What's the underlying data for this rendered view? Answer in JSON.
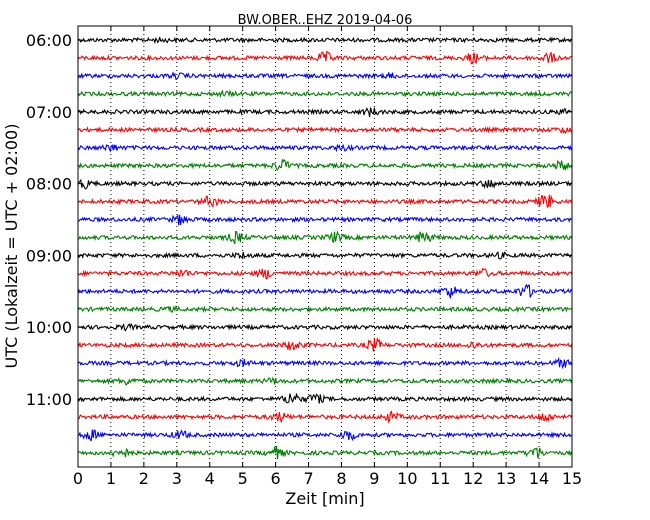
{
  "chart_data": {
    "type": "line",
    "title": "BW.OBER..EHZ 2019-04-06",
    "xlabel": "Zeit  [min]",
    "ylabel": "UTC (Lokalzeit = UTC + 02:00)",
    "xlim": [
      0,
      15
    ],
    "x_ticks": [
      "0",
      "1",
      "2",
      "3",
      "4",
      "5",
      "6",
      "7",
      "8",
      "9",
      "10",
      "11",
      "12",
      "13",
      "14",
      "15"
    ],
    "y_ticks": [
      "06:00",
      "07:00",
      "08:00",
      "09:00",
      "10:00",
      "11:00"
    ],
    "grid": "vertical dotted",
    "trace_colors": [
      "#000000",
      "#ff0000",
      "#0000ff",
      "#008000"
    ],
    "trace_starts": [
      "06:00",
      "06:15",
      "06:30",
      "06:45",
      "07:00",
      "07:15",
      "07:30",
      "07:45",
      "08:00",
      "08:15",
      "08:30",
      "08:45",
      "09:00",
      "09:15",
      "09:30",
      "09:45",
      "10:00",
      "10:15",
      "10:30",
      "10:45",
      "11:00",
      "11:15",
      "11:30",
      "11:45"
    ],
    "trace_events": [
      [
        [
          2.5,
          0.4
        ]
      ],
      [
        [
          7.5,
          1.6
        ],
        [
          12.0,
          1.5
        ],
        [
          14.3,
          1.4
        ]
      ],
      [
        [
          3.0,
          0.6
        ],
        [
          9.5,
          0.6
        ]
      ],
      [
        [
          4.5,
          0.5
        ]
      ],
      [
        [
          8.9,
          1.2
        ],
        [
          14.8,
          0.6
        ]
      ],
      [
        [
          14.8,
          0.7
        ]
      ],
      [
        [
          1.0,
          0.9
        ],
        [
          8.0,
          0.6
        ]
      ],
      [
        [
          6.2,
          1.7
        ],
        [
          14.7,
          1.3
        ]
      ],
      [
        [
          0.2,
          1.2
        ],
        [
          12.5,
          1.1
        ]
      ],
      [
        [
          4.0,
          1.5
        ],
        [
          14.2,
          2.2
        ]
      ],
      [
        [
          3.1,
          1.4
        ]
      ],
      [
        [
          4.8,
          1.6
        ],
        [
          7.8,
          1.4
        ],
        [
          10.5,
          1.7
        ]
      ],
      [
        [
          5.0,
          0.7
        ],
        [
          12.8,
          0.6
        ]
      ],
      [
        [
          3.2,
          0.9
        ],
        [
          5.7,
          1.4
        ],
        [
          12.3,
          1.1
        ]
      ],
      [
        [
          11.3,
          1.8
        ],
        [
          13.6,
          2.0
        ]
      ],
      [
        [
          2.8,
          0.4
        ]
      ],
      [
        [
          1.5,
          0.6
        ]
      ],
      [
        [
          6.5,
          1.4
        ],
        [
          9.0,
          1.8
        ],
        [
          12.0,
          0.8
        ]
      ],
      [
        [
          5.0,
          0.8
        ],
        [
          14.7,
          1.1
        ]
      ],
      [
        [
          1.5,
          0.9
        ],
        [
          5.9,
          0.7
        ]
      ],
      [
        [
          6.5,
          2.0
        ],
        [
          7.2,
          1.5
        ]
      ],
      [
        [
          6.1,
          1.3
        ],
        [
          9.5,
          1.3
        ],
        [
          14.2,
          1.2
        ]
      ],
      [
        [
          0.4,
          1.4
        ],
        [
          3.1,
          1.1
        ],
        [
          8.2,
          1.4
        ]
      ],
      [
        [
          1.3,
          1.6
        ],
        [
          6.0,
          1.7
        ],
        [
          13.9,
          1.7
        ]
      ]
    ]
  }
}
